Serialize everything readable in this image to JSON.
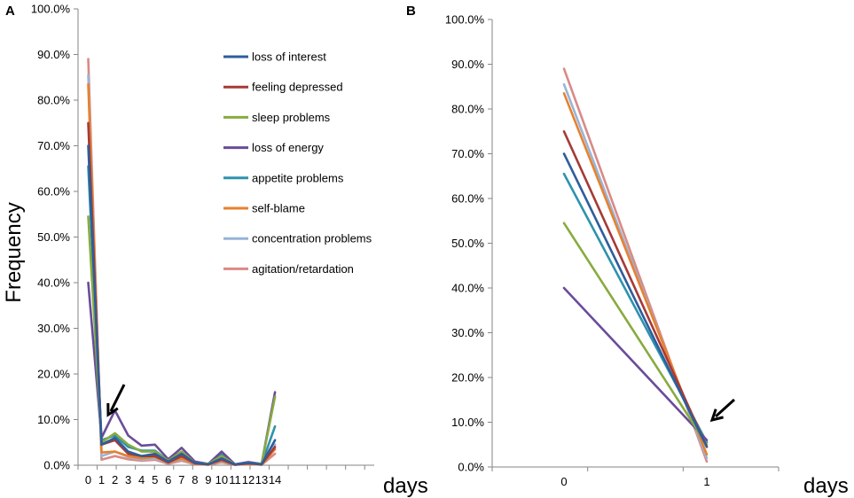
{
  "chart_data": [
    {
      "panel": "A",
      "type": "line",
      "ylabel": "Frequency",
      "xlabel": "days",
      "ylim": [
        0,
        100
      ],
      "y_ticks": [
        "0.0%",
        "10.0%",
        "20.0%",
        "30.0%",
        "40.0%",
        "50.0%",
        "60.0%",
        "70.0%",
        "80.0%",
        "90.0%",
        "100.0%"
      ],
      "x": [
        "0",
        "1",
        "2",
        "3",
        "4",
        "5",
        "6",
        "7",
        "8",
        "9",
        "10",
        "11",
        "12",
        "13",
        "14"
      ],
      "annotation": "arrow pointing at day 1",
      "series": [
        {
          "name": "loss of interest",
          "color": "#2e5d9c",
          "values": [
            70.0,
            4.5,
            6.0,
            3.0,
            2.0,
            2.5,
            0.8,
            2.5,
            0.5,
            0.2,
            1.5,
            0.2,
            0.5,
            0.2,
            5.5
          ]
        },
        {
          "name": "feeling depressed",
          "color": "#a63a36",
          "values": [
            75.0,
            4.5,
            5.5,
            2.5,
            2.0,
            2.0,
            0.6,
            2.0,
            0.4,
            0.2,
            1.2,
            0.1,
            0.4,
            0.2,
            4.0
          ]
        },
        {
          "name": "sleep problems",
          "color": "#88ab3f",
          "values": [
            54.5,
            5.0,
            7.0,
            4.5,
            3.0,
            3.0,
            1.0,
            3.0,
            0.5,
            0.3,
            2.0,
            0.2,
            0.5,
            0.3,
            15.0
          ]
        },
        {
          "name": "loss of energy",
          "color": "#6a4c99",
          "values": [
            40.0,
            6.0,
            12.0,
            6.5,
            4.3,
            4.5,
            1.3,
            3.8,
            0.8,
            0.3,
            3.0,
            0.2,
            0.7,
            0.3,
            16.0
          ]
        },
        {
          "name": "appetite problems",
          "color": "#2e92ad",
          "values": [
            65.5,
            5.5,
            6.5,
            4.0,
            3.2,
            3.2,
            1.0,
            2.8,
            0.6,
            0.2,
            2.5,
            0.2,
            0.5,
            0.2,
            8.5
          ]
        },
        {
          "name": "self-blame",
          "color": "#e8812e",
          "values": [
            83.5,
            2.8,
            3.0,
            2.0,
            1.5,
            1.8,
            0.5,
            1.5,
            0.3,
            0.1,
            1.0,
            0.1,
            0.3,
            0.1,
            3.5
          ]
        },
        {
          "name": "concentration problems",
          "color": "#98b4d8",
          "values": [
            85.5,
            2.0,
            3.0,
            1.8,
            1.2,
            1.5,
            0.4,
            1.3,
            0.3,
            0.1,
            0.8,
            0.1,
            0.3,
            0.1,
            4.5
          ]
        },
        {
          "name": "agitation/retardation",
          "color": "#d98a86",
          "values": [
            89.0,
            1.2,
            2.0,
            1.3,
            1.0,
            1.2,
            0.3,
            1.0,
            0.2,
            0.1,
            0.6,
            0.1,
            0.2,
            0.1,
            2.5
          ]
        }
      ]
    },
    {
      "panel": "B",
      "type": "line",
      "xlabel": "days",
      "ylim": [
        0,
        100
      ],
      "y_ticks": [
        "0.0%",
        "10.0%",
        "20.0%",
        "30.0%",
        "40.0%",
        "50.0%",
        "60.0%",
        "70.0%",
        "80.0%",
        "90.0%",
        "100.0%"
      ],
      "x": [
        "0",
        "1"
      ],
      "annotation": "arrow pointing at day 1",
      "series": [
        {
          "name": "loss of interest",
          "color": "#2e5d9c",
          "values": [
            70.0,
            4.5
          ]
        },
        {
          "name": "feeling depressed",
          "color": "#a63a36",
          "values": [
            75.0,
            4.5
          ]
        },
        {
          "name": "sleep problems",
          "color": "#88ab3f",
          "values": [
            54.5,
            5.0
          ]
        },
        {
          "name": "loss of energy",
          "color": "#6a4c99",
          "values": [
            40.0,
            6.0
          ]
        },
        {
          "name": "appetite problems",
          "color": "#2e92ad",
          "values": [
            65.5,
            5.5
          ]
        },
        {
          "name": "self-blame",
          "color": "#e8812e",
          "values": [
            83.5,
            2.8
          ]
        },
        {
          "name": "concentration problems",
          "color": "#98b4d8",
          "values": [
            85.5,
            2.0
          ]
        },
        {
          "name": "agitation/retardation",
          "color": "#d98a86",
          "values": [
            89.0,
            1.2
          ]
        }
      ]
    }
  ]
}
